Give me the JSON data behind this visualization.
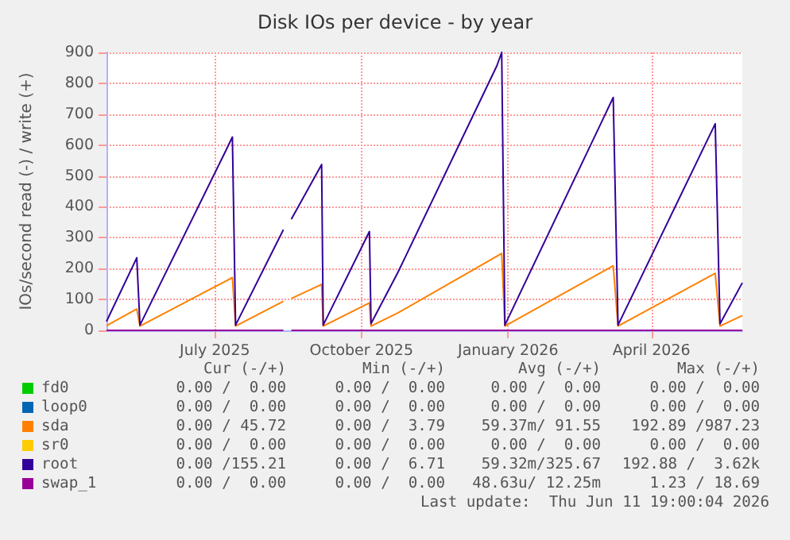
{
  "chart_data": {
    "type": "line",
    "title": "Disk IOs per device - by year",
    "ylabel": "IOs/second read (-) / write (+)",
    "x": [
      "2025-04-24",
      "2025-05-13",
      "2025-05-15",
      "2025-07-08",
      "2025-07-12",
      "2025-07-14",
      "2025-08-13",
      "2025-08-15",
      "2025-08-18",
      "2025-09-06",
      "2025-09-07",
      "2025-10-06",
      "2025-10-07",
      "2025-10-24",
      "2025-12-25",
      "2025-12-28",
      "2025-12-30",
      "2026-03-08",
      "2026-03-11",
      "2026-05-11",
      "2026-05-14",
      "2026-05-28"
    ],
    "series": [
      {
        "name": "fd0",
        "color": "#00cc00",
        "values": [
          null,
          null,
          null,
          null,
          null,
          null,
          null,
          null,
          null,
          null,
          null,
          null,
          null,
          null,
          null,
          null,
          null,
          null,
          null,
          null,
          null,
          null
        ]
      },
      {
        "name": "loop0",
        "color": "#0066b3",
        "values": [
          null,
          null,
          null,
          null,
          null,
          null,
          null,
          null,
          null,
          null,
          null,
          null,
          null,
          null,
          null,
          null,
          null,
          null,
          null,
          null,
          null,
          null
        ]
      },
      {
        "name": "sda",
        "color": "#ff8000",
        "values": [
          15,
          69,
          14,
          160,
          171,
          14,
          94,
          null,
          103,
          149,
          14,
          89,
          14,
          57,
          240,
          249,
          14,
          209,
          14,
          185,
          14,
          48
        ]
      },
      {
        "name": "sr0",
        "color": "#ffcc00",
        "values": [
          null,
          null,
          null,
          null,
          null,
          null,
          null,
          null,
          null,
          null,
          null,
          null,
          null,
          null,
          null,
          null,
          null,
          null,
          null,
          null,
          null,
          null
        ]
      },
      {
        "name": "root",
        "color": "#330099",
        "values": [
          29,
          235,
          17,
          583,
          626,
          17,
          326,
          null,
          360,
          537,
          17,
          320,
          22,
          189,
          857,
          900,
          17,
          754,
          17,
          669,
          21,
          154
        ]
      },
      {
        "name": "swap_1",
        "color": "#990099",
        "values": [
          0,
          0,
          0,
          0,
          0,
          0,
          0,
          null,
          0,
          0,
          0,
          0,
          0,
          0,
          0,
          0,
          0,
          0,
          0,
          0,
          0,
          0
        ]
      }
    ],
    "xlim": [
      "2025-04-24",
      "2026-05-28"
    ],
    "xticks": [
      {
        "value": "2025-07-01",
        "label": "July 2025"
      },
      {
        "value": "2025-10-01",
        "label": "October 2025"
      },
      {
        "value": "2026-01-01",
        "label": "January 2026"
      },
      {
        "value": "2026-04-01",
        "label": "April 2026"
      }
    ],
    "ylim": [
      0,
      900
    ],
    "yticks": [
      0,
      100,
      200,
      300,
      400,
      500,
      600,
      700,
      800,
      900
    ],
    "grid": true,
    "legend": "bottom left",
    "marker": "none",
    "line_style": "solid",
    "annotations": [
      "Cur (-/+)",
      "Min (-/+)",
      "Avg (-/+)",
      "Max (-/+)",
      "0.00 /  0.00",
      "0.00 /  0.00",
      "0.00 /  0.00",
      "0.00 /  0.00",
      "0.00 /  0.00",
      "0.00 /  0.00",
      "0.00 /  0.00",
      "0.00 /  0.00",
      "0.00 / 45.72",
      "0.00 /  3.79",
      "59.37m/ 91.55",
      "192.89 /987.23",
      "0.00 /  0.00",
      "0.00 /  0.00",
      "0.00 /  0.00",
      "0.00 /  0.00",
      "0.00 /155.21",
      "0.00 /  6.71",
      "59.32m/325.67",
      "192.88 /  3.62k",
      "0.00 /  0.00",
      "0.00 /  0.00",
      "48.63u/ 12.25m",
      "1.23 / 18.69",
      "Last update:  Thu Jun 11 19:00:04 2026"
    ]
  }
}
